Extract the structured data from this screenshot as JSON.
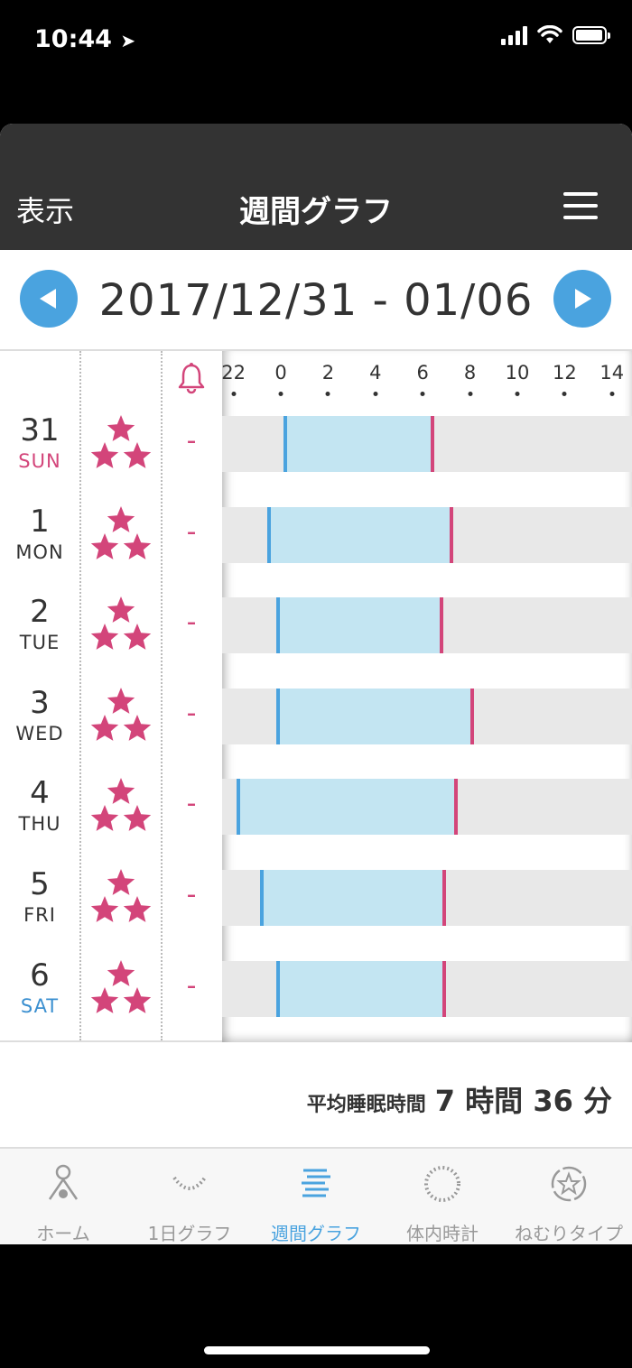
{
  "status": {
    "time": "10:44"
  },
  "nav": {
    "left": "表示",
    "title": "週間グラフ"
  },
  "week": {
    "range": "2017/12/31 - 01/06"
  },
  "axis_ticks": [
    "22",
    "0",
    "2",
    "4",
    "6",
    "8",
    "10",
    "12",
    "14"
  ],
  "days": [
    {
      "num": "31",
      "name": "SUN",
      "type": "sun",
      "stars": 3,
      "alarm": "-",
      "sleep_start": 0.2,
      "sleep_end": 6.4
    },
    {
      "num": "1",
      "name": "MON",
      "type": "wk",
      "stars": 3,
      "alarm": "-",
      "sleep_start": -0.5,
      "sleep_end": 7.2
    },
    {
      "num": "2",
      "name": "TUE",
      "type": "wk",
      "stars": 3,
      "alarm": "-",
      "sleep_start": -0.1,
      "sleep_end": 6.8
    },
    {
      "num": "3",
      "name": "WED",
      "type": "wk",
      "stars": 3,
      "alarm": "-",
      "sleep_start": -0.1,
      "sleep_end": 8.1
    },
    {
      "num": "4",
      "name": "THU",
      "type": "wk",
      "stars": 3,
      "alarm": "-",
      "sleep_start": -1.8,
      "sleep_end": 7.4
    },
    {
      "num": "5",
      "name": "FRI",
      "type": "wk",
      "stars": 3,
      "alarm": "-",
      "sleep_start": -0.8,
      "sleep_end": 6.9
    },
    {
      "num": "6",
      "name": "SAT",
      "type": "sat",
      "stars": 3,
      "alarm": "-",
      "sleep_start": -0.1,
      "sleep_end": 6.9
    }
  ],
  "summary": {
    "label": "平均睡眠時間",
    "value": "7 時間 36 分"
  },
  "tabs": [
    {
      "label": "ホーム",
      "icon": "home-icon",
      "active": false
    },
    {
      "label": "1日グラフ",
      "icon": "daily-graph-icon",
      "active": false
    },
    {
      "label": "週間グラフ",
      "icon": "weekly-graph-icon",
      "active": true
    },
    {
      "label": "体内時計",
      "icon": "body-clock-icon",
      "active": false
    },
    {
      "label": "ねむりタイプ",
      "icon": "sleep-type-icon",
      "active": false
    }
  ],
  "colors": {
    "accent": "#4aa3df",
    "pink": "#d3457a",
    "sleep_fill": "#c3e5f2",
    "row_bg": "#e8e8e8"
  }
}
